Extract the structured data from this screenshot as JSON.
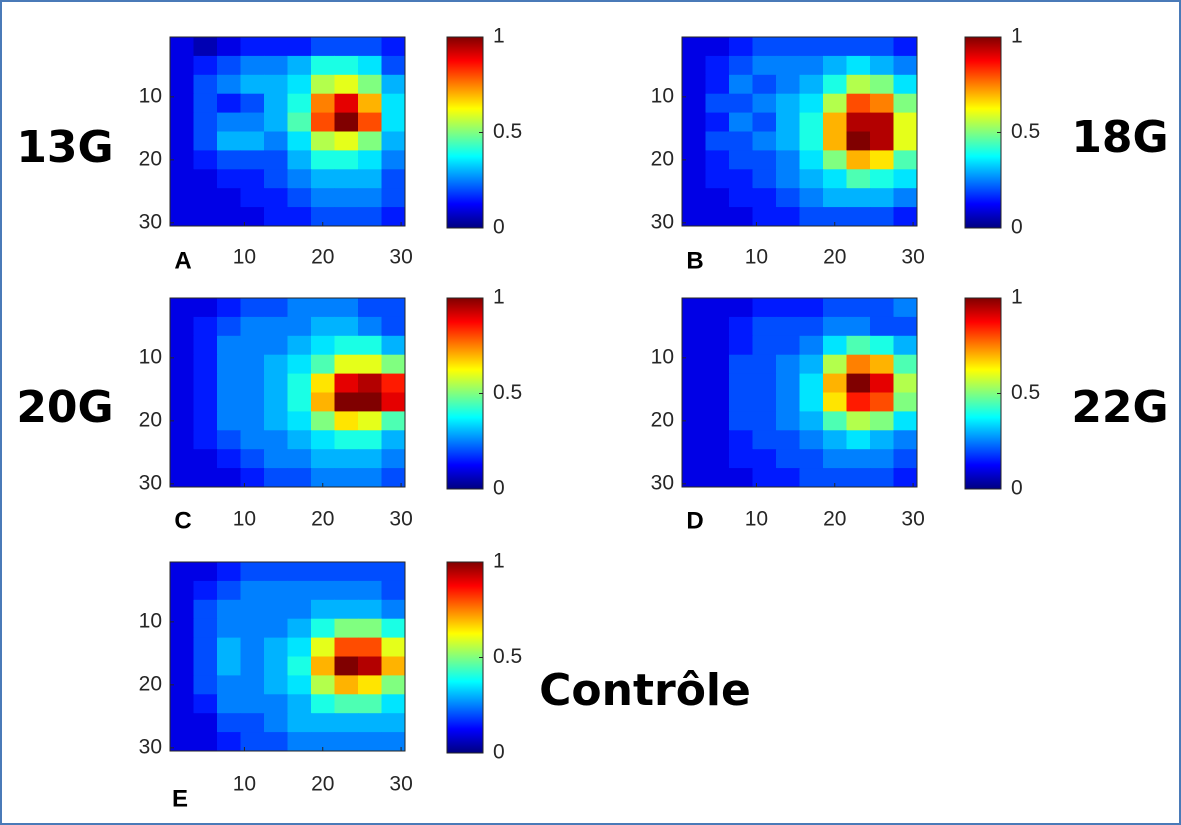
{
  "chart_data": [
    {
      "type": "heatmap",
      "label": "13G",
      "panel": "A",
      "colormap": "jet",
      "xlim": [
        0.5,
        30.5
      ],
      "ylim": [
        0.5,
        30.5
      ],
      "xticks": [
        10,
        20,
        30
      ],
      "yticks": [
        10,
        20,
        30
      ],
      "clim": [
        0,
        1
      ],
      "cticks": [
        0,
        0.5,
        1
      ],
      "values": [
        [
          0.1,
          0.05,
          0.1,
          0.15,
          0.15,
          0.15,
          0.2,
          0.2,
          0.2,
          0.15
        ],
        [
          0.1,
          0.15,
          0.2,
          0.25,
          0.25,
          0.3,
          0.4,
          0.4,
          0.35,
          0.2
        ],
        [
          0.1,
          0.2,
          0.25,
          0.3,
          0.3,
          0.35,
          0.55,
          0.6,
          0.5,
          0.3
        ],
        [
          0.1,
          0.2,
          0.15,
          0.2,
          0.3,
          0.4,
          0.75,
          0.9,
          0.7,
          0.35
        ],
        [
          0.1,
          0.2,
          0.25,
          0.25,
          0.3,
          0.45,
          0.8,
          1.0,
          0.8,
          0.35
        ],
        [
          0.1,
          0.2,
          0.3,
          0.3,
          0.25,
          0.35,
          0.55,
          0.6,
          0.5,
          0.3
        ],
        [
          0.1,
          0.15,
          0.2,
          0.2,
          0.2,
          0.3,
          0.4,
          0.4,
          0.35,
          0.25
        ],
        [
          0.1,
          0.1,
          0.15,
          0.15,
          0.2,
          0.25,
          0.3,
          0.3,
          0.3,
          0.2
        ],
        [
          0.1,
          0.1,
          0.1,
          0.15,
          0.15,
          0.2,
          0.25,
          0.25,
          0.25,
          0.2
        ],
        [
          0.1,
          0.1,
          0.1,
          0.1,
          0.15,
          0.15,
          0.2,
          0.2,
          0.2,
          0.15
        ]
      ]
    },
    {
      "type": "heatmap",
      "label": "18G",
      "panel": "B",
      "colormap": "jet",
      "xlim": [
        0.5,
        30.5
      ],
      "ylim": [
        0.5,
        30.5
      ],
      "xticks": [
        10,
        20,
        30
      ],
      "yticks": [
        10,
        20,
        30
      ],
      "clim": [
        0,
        1
      ],
      "cticks": [
        0,
        0.5,
        1
      ],
      "values": [
        [
          0.1,
          0.1,
          0.15,
          0.2,
          0.2,
          0.2,
          0.2,
          0.2,
          0.2,
          0.15
        ],
        [
          0.1,
          0.15,
          0.2,
          0.25,
          0.25,
          0.25,
          0.3,
          0.35,
          0.3,
          0.25
        ],
        [
          0.1,
          0.15,
          0.25,
          0.2,
          0.25,
          0.3,
          0.4,
          0.55,
          0.5,
          0.35
        ],
        [
          0.1,
          0.2,
          0.2,
          0.25,
          0.3,
          0.35,
          0.55,
          0.8,
          0.75,
          0.5
        ],
        [
          0.1,
          0.15,
          0.25,
          0.2,
          0.3,
          0.4,
          0.7,
          0.95,
          0.95,
          0.6
        ],
        [
          0.1,
          0.2,
          0.2,
          0.25,
          0.3,
          0.4,
          0.7,
          1.0,
          0.95,
          0.6
        ],
        [
          0.1,
          0.15,
          0.2,
          0.2,
          0.25,
          0.35,
          0.5,
          0.7,
          0.65,
          0.45
        ],
        [
          0.1,
          0.15,
          0.15,
          0.2,
          0.25,
          0.3,
          0.35,
          0.45,
          0.4,
          0.35
        ],
        [
          0.1,
          0.1,
          0.15,
          0.15,
          0.2,
          0.25,
          0.3,
          0.3,
          0.3,
          0.25
        ],
        [
          0.1,
          0.1,
          0.1,
          0.15,
          0.15,
          0.2,
          0.2,
          0.2,
          0.2,
          0.15
        ]
      ]
    },
    {
      "type": "heatmap",
      "label": "20G",
      "panel": "C",
      "colormap": "jet",
      "xlim": [
        0.5,
        30.5
      ],
      "ylim": [
        0.5,
        30.5
      ],
      "xticks": [
        10,
        20,
        30
      ],
      "yticks": [
        10,
        20,
        30
      ],
      "clim": [
        0,
        1
      ],
      "cticks": [
        0,
        0.5,
        1
      ],
      "values": [
        [
          0.1,
          0.1,
          0.15,
          0.2,
          0.2,
          0.25,
          0.25,
          0.25,
          0.2,
          0.2
        ],
        [
          0.1,
          0.15,
          0.2,
          0.25,
          0.25,
          0.25,
          0.3,
          0.3,
          0.25,
          0.2
        ],
        [
          0.1,
          0.15,
          0.25,
          0.25,
          0.25,
          0.3,
          0.35,
          0.4,
          0.4,
          0.3
        ],
        [
          0.1,
          0.15,
          0.25,
          0.25,
          0.3,
          0.35,
          0.45,
          0.6,
          0.6,
          0.5
        ],
        [
          0.1,
          0.15,
          0.25,
          0.25,
          0.3,
          0.4,
          0.65,
          0.9,
          0.95,
          0.85
        ],
        [
          0.1,
          0.15,
          0.25,
          0.25,
          0.3,
          0.4,
          0.7,
          1.0,
          1.0,
          0.9
        ],
        [
          0.1,
          0.15,
          0.25,
          0.25,
          0.3,
          0.35,
          0.5,
          0.65,
          0.6,
          0.45
        ],
        [
          0.1,
          0.15,
          0.2,
          0.25,
          0.25,
          0.3,
          0.35,
          0.4,
          0.4,
          0.3
        ],
        [
          0.1,
          0.1,
          0.15,
          0.2,
          0.25,
          0.25,
          0.3,
          0.3,
          0.3,
          0.25
        ],
        [
          0.1,
          0.1,
          0.1,
          0.15,
          0.2,
          0.2,
          0.25,
          0.25,
          0.25,
          0.2
        ]
      ]
    },
    {
      "type": "heatmap",
      "label": "22G",
      "panel": "D",
      "colormap": "jet",
      "xlim": [
        0.5,
        30.5
      ],
      "ylim": [
        0.5,
        30.5
      ],
      "xticks": [
        10,
        20,
        30
      ],
      "yticks": [
        10,
        20,
        30
      ],
      "clim": [
        0,
        1
      ],
      "cticks": [
        0,
        0.5,
        1
      ],
      "values": [
        [
          0.1,
          0.1,
          0.1,
          0.15,
          0.15,
          0.15,
          0.2,
          0.2,
          0.2,
          0.25
        ],
        [
          0.1,
          0.1,
          0.15,
          0.2,
          0.2,
          0.2,
          0.25,
          0.25,
          0.2,
          0.2
        ],
        [
          0.1,
          0.1,
          0.15,
          0.2,
          0.2,
          0.25,
          0.35,
          0.45,
          0.4,
          0.3
        ],
        [
          0.1,
          0.1,
          0.2,
          0.2,
          0.25,
          0.3,
          0.55,
          0.75,
          0.7,
          0.45
        ],
        [
          0.1,
          0.1,
          0.2,
          0.2,
          0.25,
          0.35,
          0.7,
          1.0,
          0.9,
          0.55
        ],
        [
          0.1,
          0.1,
          0.2,
          0.2,
          0.25,
          0.35,
          0.65,
          0.85,
          0.8,
          0.5
        ],
        [
          0.1,
          0.1,
          0.2,
          0.2,
          0.25,
          0.3,
          0.45,
          0.55,
          0.5,
          0.35
        ],
        [
          0.1,
          0.1,
          0.15,
          0.2,
          0.2,
          0.25,
          0.3,
          0.35,
          0.3,
          0.25
        ],
        [
          0.1,
          0.1,
          0.15,
          0.15,
          0.2,
          0.2,
          0.25,
          0.25,
          0.25,
          0.2
        ],
        [
          0.1,
          0.1,
          0.1,
          0.15,
          0.15,
          0.2,
          0.2,
          0.2,
          0.2,
          0.15
        ]
      ]
    },
    {
      "type": "heatmap",
      "label": "Contrôle",
      "panel": "E",
      "colormap": "jet",
      "xlim": [
        0.5,
        30.5
      ],
      "ylim": [
        0.5,
        30.5
      ],
      "xticks": [
        10,
        20,
        30
      ],
      "yticks": [
        10,
        20,
        30
      ],
      "clim": [
        0,
        1
      ],
      "cticks": [
        0,
        0.5,
        1
      ],
      "values": [
        [
          0.1,
          0.1,
          0.15,
          0.2,
          0.2,
          0.2,
          0.2,
          0.2,
          0.2,
          0.2
        ],
        [
          0.1,
          0.15,
          0.2,
          0.25,
          0.25,
          0.25,
          0.25,
          0.25,
          0.25,
          0.2
        ],
        [
          0.1,
          0.2,
          0.25,
          0.25,
          0.25,
          0.25,
          0.3,
          0.3,
          0.3,
          0.25
        ],
        [
          0.1,
          0.2,
          0.25,
          0.25,
          0.25,
          0.3,
          0.4,
          0.5,
          0.5,
          0.4
        ],
        [
          0.1,
          0.2,
          0.3,
          0.25,
          0.3,
          0.35,
          0.6,
          0.8,
          0.8,
          0.6
        ],
        [
          0.1,
          0.2,
          0.3,
          0.25,
          0.3,
          0.4,
          0.7,
          1.0,
          0.95,
          0.7
        ],
        [
          0.1,
          0.2,
          0.25,
          0.25,
          0.3,
          0.35,
          0.55,
          0.7,
          0.65,
          0.5
        ],
        [
          0.1,
          0.15,
          0.25,
          0.25,
          0.25,
          0.3,
          0.4,
          0.45,
          0.45,
          0.35
        ],
        [
          0.1,
          0.1,
          0.2,
          0.2,
          0.25,
          0.3,
          0.3,
          0.3,
          0.3,
          0.3
        ],
        [
          0.1,
          0.1,
          0.15,
          0.2,
          0.2,
          0.25,
          0.25,
          0.25,
          0.25,
          0.25
        ]
      ]
    }
  ]
}
